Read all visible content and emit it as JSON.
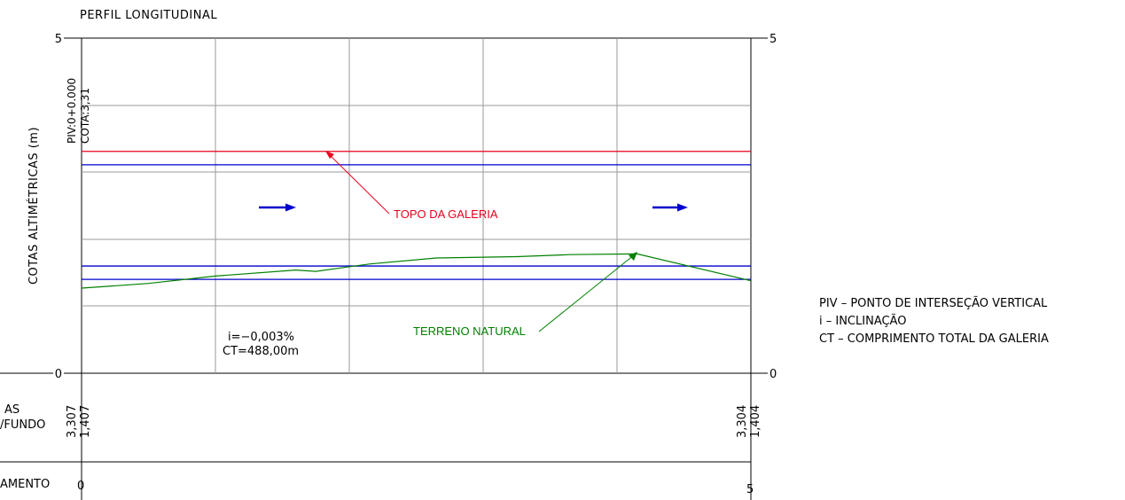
{
  "title": "PERFIL LONGITUDINAL",
  "ylabel": "COTAS ALTIMÉTRICAS (m)",
  "axis": {
    "left_top": "5",
    "left_bottom": "0",
    "right_top": "5",
    "right_bottom": "0"
  },
  "piv": {
    "label": "PIV:0+0.000",
    "cota": "COTA:3,31"
  },
  "annotations": {
    "topo": "TOPO DA GALERIA",
    "terreno": "TERRENO NATURAL",
    "slope": "i=−0,003%",
    "length": "CT=488,00m"
  },
  "table": {
    "row1_label": "AS",
    "row2_label": "/FUNDO",
    "row3_label": "AMENTO",
    "left_top_value": "3,307",
    "left_bottom_value": "1,407",
    "right_top_value": "3,304",
    "right_bottom_value": "1,404",
    "station_start": "0",
    "station_end": "5"
  },
  "legend": [
    "PIV – PONTO DE INTERSEÇÃO VERTICAL",
    "i – INCLINAÇÃO",
    "CT – COMPRIMENTO TOTAL DA GALERIA"
  ],
  "colors": {
    "topo": "#e8001c",
    "pipe": "#0000cc",
    "terrain": "#008000",
    "grid": "#9a9a9a",
    "frame": "#000000"
  },
  "chart_data": {
    "type": "line",
    "title": "PERFIL LONGITUDINAL",
    "ylabel": "COTAS ALTIMÉTRICAS (m)",
    "xlim": [
      0,
      5
    ],
    "ylim": [
      0,
      5
    ],
    "series": [
      {
        "name": "TOPO DA GALERIA",
        "x": [
          0,
          5
        ],
        "y": [
          3.31,
          3.31
        ]
      },
      {
        "x": [
          0,
          5
        ],
        "y": [
          3.11,
          3.11
        ]
      },
      {
        "x": [
          0,
          5
        ],
        "y": [
          1.6,
          1.6
        ]
      },
      {
        "x": [
          0,
          5
        ],
        "y": [
          1.4,
          1.4
        ]
      },
      {
        "name": "TERRENO NATURAL",
        "x": [
          0,
          0.5,
          1.0,
          1.6,
          1.75,
          2.15,
          2.65,
          3.25,
          3.65,
          4.15,
          5.0
        ],
        "y": [
          1.27,
          1.34,
          1.45,
          1.54,
          1.52,
          1.63,
          1.72,
          1.74,
          1.77,
          1.78,
          1.38
        ]
      }
    ]
  }
}
